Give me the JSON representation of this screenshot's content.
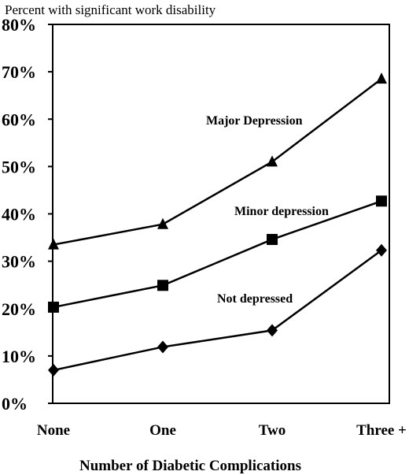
{
  "chart_data": {
    "type": "line",
    "ylabel": "Percent with significant work disability",
    "xlabel": "Number of Diabetic Complications",
    "categories": [
      "None",
      "One",
      "Two",
      "Three +"
    ],
    "ylim": [
      0,
      80
    ],
    "yticks": [
      "0%",
      "10%",
      "20%",
      "30%",
      "40%",
      "50%",
      "60%",
      "70%",
      "80%"
    ],
    "grid": false,
    "series": [
      {
        "name": "Major Depression",
        "marker": "triangle",
        "values": [
          33.5,
          37.8,
          51,
          68.5
        ]
      },
      {
        "name": "Minor depression",
        "marker": "square",
        "values": [
          20.3,
          24.9,
          34.6,
          42.7
        ]
      },
      {
        "name": "Not depressed",
        "marker": "diamond",
        "values": [
          7,
          11.9,
          15.4,
          32.3
        ]
      }
    ]
  }
}
